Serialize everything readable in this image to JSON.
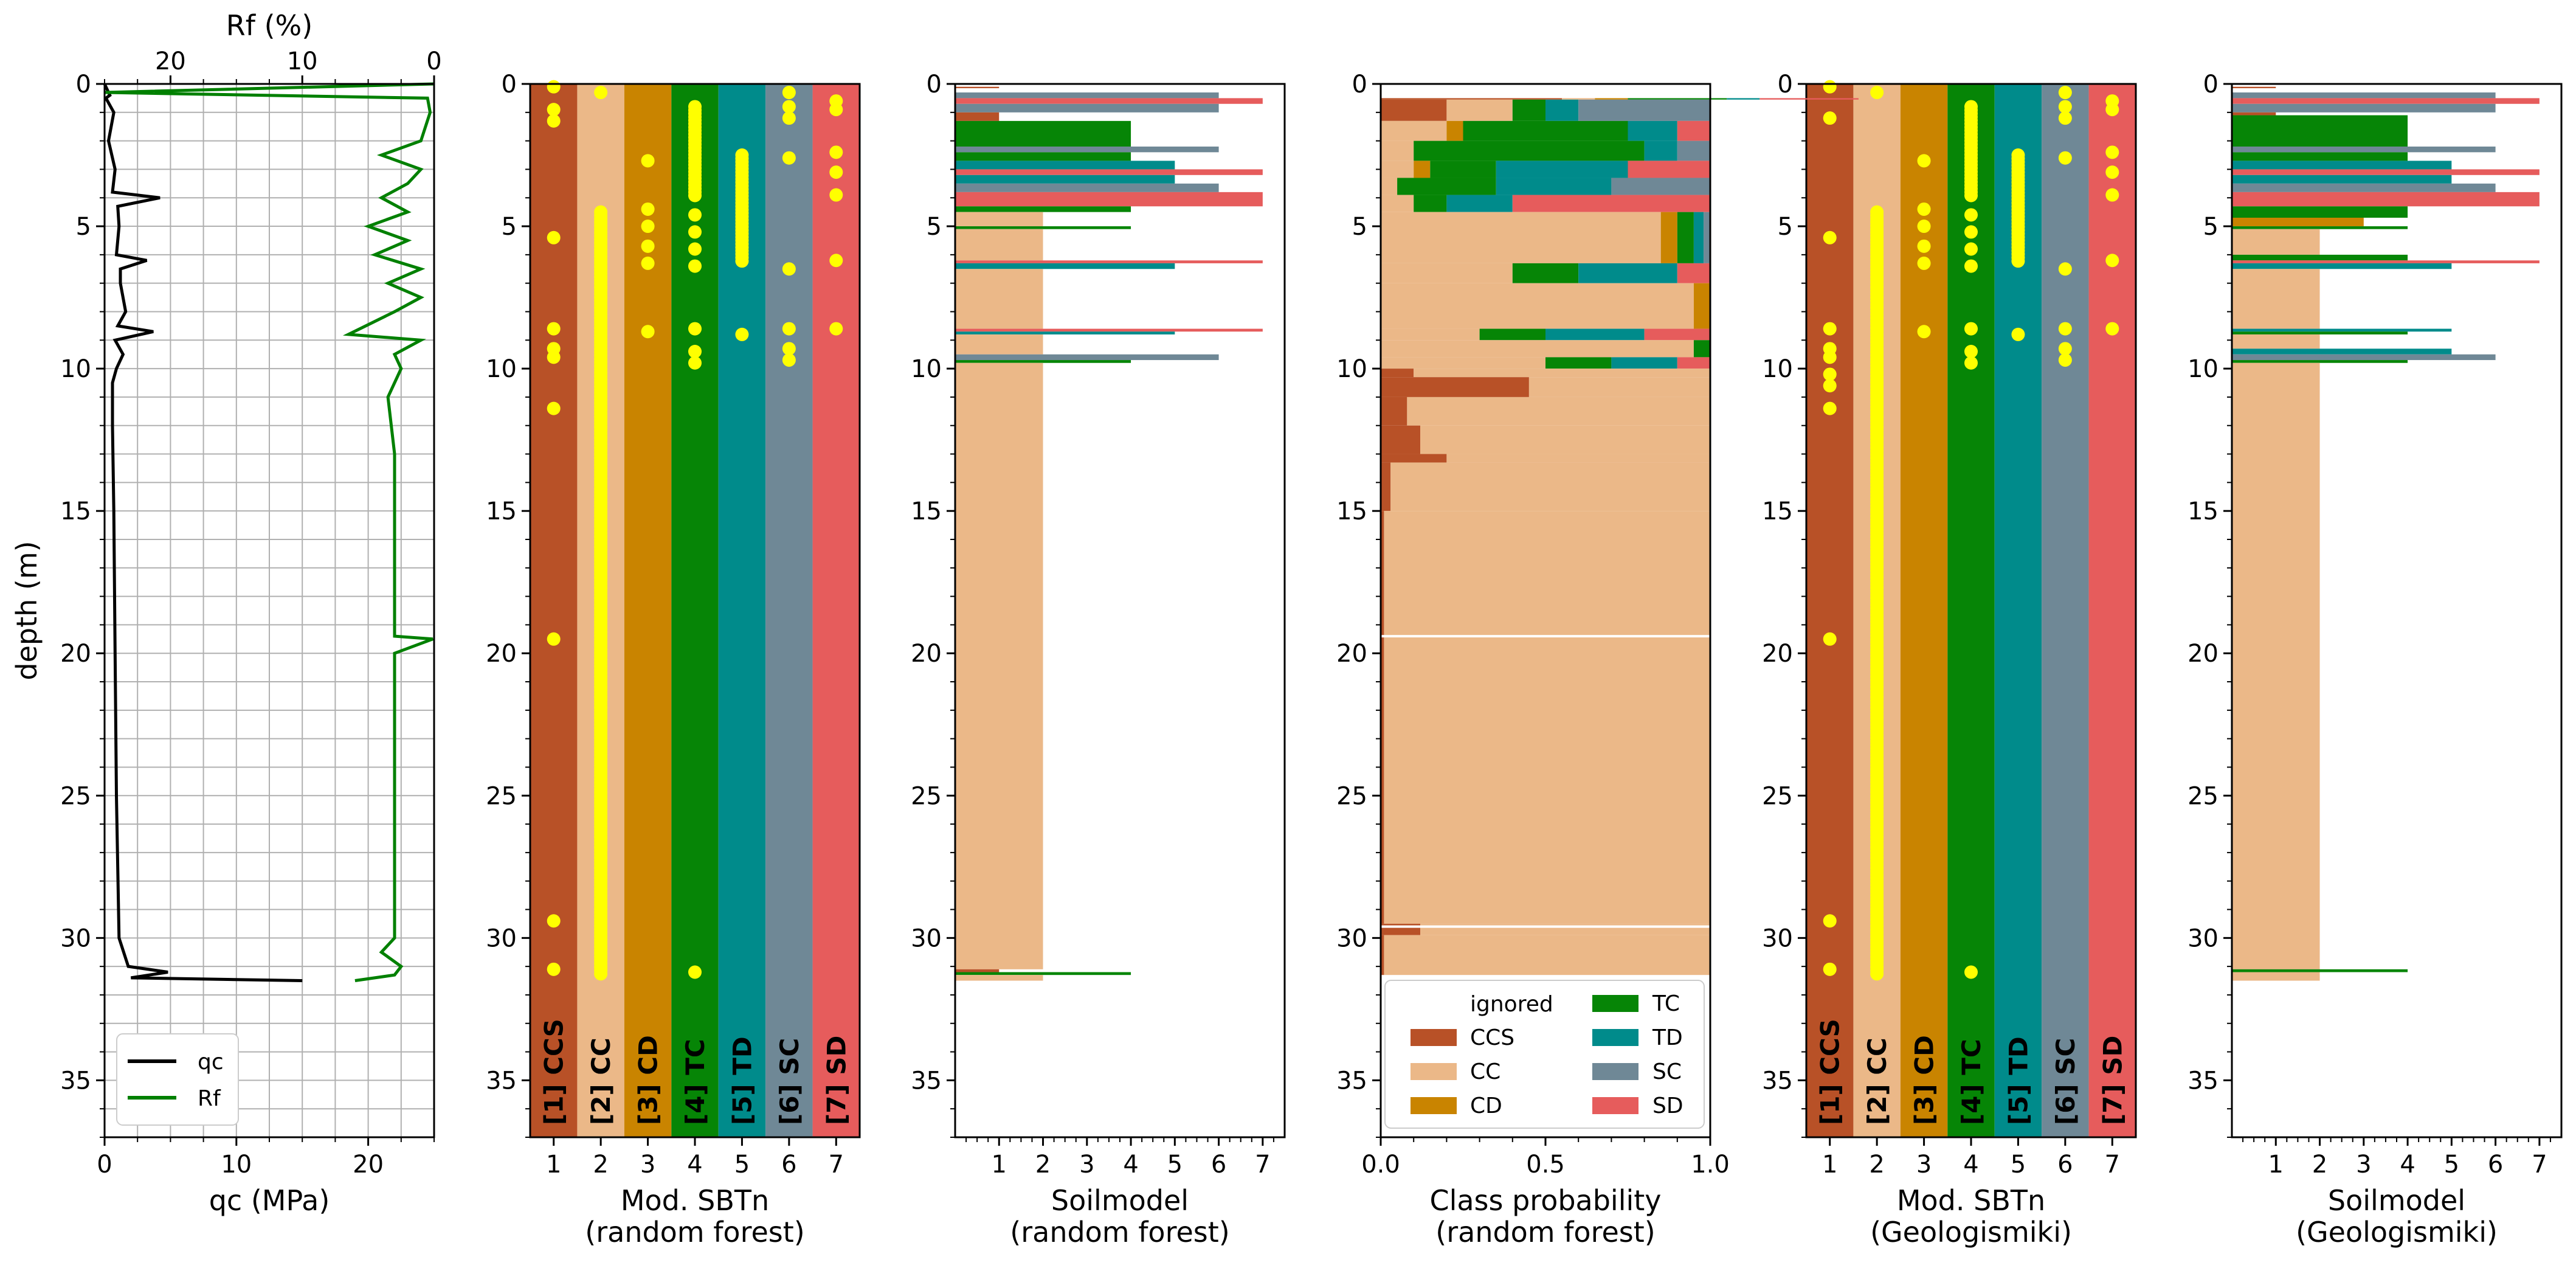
{
  "colors": {
    "CCS": "#b85127",
    "CC": "#ebb888",
    "CD": "#c98400",
    "TC": "#068506",
    "TD": "#008b8b",
    "SC": "#6f8896",
    "SD": "#e65c5c",
    "qc": "#000000",
    "Rf": "#008000",
    "marker": "#ffff00"
  },
  "classes": [
    {
      "id": 1,
      "code": "CCS",
      "label": "[1] CCS"
    },
    {
      "id": 2,
      "code": "CC",
      "label": "[2] CC"
    },
    {
      "id": 3,
      "code": "CD",
      "label": "[3] CD"
    },
    {
      "id": 4,
      "code": "TC",
      "label": "[4] TC"
    },
    {
      "id": 5,
      "code": "TD",
      "label": "[5] TD"
    },
    {
      "id": 6,
      "code": "SC",
      "label": "[6] SC"
    },
    {
      "id": 7,
      "code": "SD",
      "label": "[7] SD"
    }
  ],
  "chart_data": [
    {
      "type": "line",
      "panel": "cpt",
      "ylabel": "depth (m)",
      "ylim": [
        37,
        0
      ],
      "yticks": [
        0,
        5,
        10,
        15,
        20,
        25,
        30,
        35
      ],
      "xlabel": "qc (MPa)",
      "xlim": [
        0,
        25
      ],
      "xticks": [
        0,
        10,
        20
      ],
      "x2label": "Rf (%)",
      "x2lim": [
        25,
        0
      ],
      "x2ticks": [
        20,
        10,
        0
      ],
      "grid": true,
      "legend": {
        "position": "bottom-left",
        "entries": [
          "qc",
          "Rf"
        ]
      },
      "series": [
        {
          "name": "qc",
          "depth": [
            0,
            0.4,
            0.5,
            1,
            2,
            3,
            3.8,
            4,
            4.3,
            5,
            6,
            6.2,
            6.5,
            7,
            8,
            8.5,
            8.7,
            9,
            9.5,
            10,
            10.5,
            11,
            12,
            15,
            20,
            25,
            30,
            31,
            31.2,
            31.4,
            31.5
          ],
          "values": [
            0,
            0.4,
            0.1,
            0.7,
            0.3,
            0.8,
            0.6,
            4.2,
            1.0,
            1.1,
            0.9,
            3.2,
            1.2,
            1.2,
            1.6,
            1.0,
            3.7,
            0.8,
            1.4,
            0.9,
            0.6,
            0.6,
            0.6,
            0.7,
            0.8,
            0.9,
            1.1,
            1.8,
            4.8,
            2.0,
            15.0
          ]
        },
        {
          "name": "Rf",
          "depth": [
            0,
            0.3,
            0.5,
            1,
            2,
            2.5,
            3,
            3.5,
            4,
            4.5,
            5,
            5.5,
            6,
            6.5,
            7,
            7.5,
            8,
            8.8,
            9,
            9.5,
            10,
            11,
            13,
            15,
            17,
            19.4,
            19.5,
            20,
            22,
            25,
            28,
            30,
            30.5,
            31,
            31.3,
            31.5
          ],
          "values": [
            0,
            25,
            0.5,
            0.3,
            1.0,
            4.0,
            1.0,
            2.0,
            4.0,
            2.0,
            5.0,
            2.0,
            4.5,
            1.0,
            3.5,
            1.0,
            3.0,
            6.5,
            1.0,
            3.0,
            2.5,
            3.5,
            3.0,
            3.0,
            3.0,
            3.0,
            0.1,
            3.0,
            3.0,
            3.0,
            3.0,
            3.0,
            4.0,
            2.5,
            3.0,
            6.0
          ]
        }
      ]
    },
    {
      "type": "scatter",
      "panel": "sbtn-rf",
      "xlabel": "Mod. SBTn\n(random forest)",
      "xlim": [
        0.5,
        7.5
      ],
      "xticks": [
        1,
        2,
        3,
        4,
        5,
        6,
        7
      ],
      "ylim": [
        37,
        0
      ],
      "yticks": [
        0,
        5,
        10,
        15,
        20,
        25,
        30,
        35
      ],
      "points": {
        "1": [
          0.1,
          0.9,
          1.3,
          5.4,
          8.6,
          9.3,
          9.6,
          11.4,
          19.5,
          29.4,
          31.1
        ],
        "2": [
          0.3,
          "range:4.5-31.3"
        ],
        "3": [
          2.7,
          4.4,
          5.0,
          5.7,
          6.3,
          8.7
        ],
        "4": [
          "range:0.8-4.0",
          4.6,
          5.2,
          5.8,
          6.4,
          8.6,
          9.4,
          9.8,
          31.2
        ],
        "5": [
          "range:2.5-6.3",
          8.8
        ],
        "6": [
          0.3,
          0.8,
          1.2,
          2.6,
          6.5,
          8.6,
          9.3,
          9.7
        ],
        "7": [
          0.6,
          0.9,
          2.4,
          3.1,
          3.9,
          6.2,
          8.6
        ]
      }
    },
    {
      "type": "bar",
      "panel": "soilmodel-rf",
      "orientation": "horizontal",
      "xlabel": "Soilmodel\n(random forest)",
      "xlim": [
        0,
        7.5
      ],
      "xticks": [
        1,
        2,
        3,
        4,
        5,
        6,
        7
      ],
      "ylim": [
        37,
        0
      ],
      "yticks": [
        0,
        5,
        10,
        15,
        20,
        25,
        30,
        35
      ],
      "layers": [
        [
          0.1,
          0.15,
          1
        ],
        [
          0.3,
          0.5,
          6
        ],
        [
          0.5,
          0.7,
          7
        ],
        [
          0.7,
          1.0,
          6
        ],
        [
          1.0,
          1.3,
          1
        ],
        [
          1.3,
          2.2,
          4
        ],
        [
          2.2,
          2.4,
          6
        ],
        [
          2.4,
          2.7,
          4
        ],
        [
          2.7,
          3.0,
          5
        ],
        [
          3.0,
          3.2,
          7
        ],
        [
          3.2,
          3.5,
          5
        ],
        [
          3.5,
          3.8,
          6
        ],
        [
          3.8,
          4.3,
          7
        ],
        [
          4.3,
          4.5,
          4
        ],
        [
          4.5,
          5.0,
          2
        ],
        [
          5.0,
          5.1,
          4
        ],
        [
          5.1,
          6.2,
          2
        ],
        [
          6.2,
          6.3,
          7
        ],
        [
          6.3,
          6.5,
          5
        ],
        [
          6.5,
          8.6,
          2
        ],
        [
          8.6,
          8.7,
          7
        ],
        [
          8.7,
          8.8,
          5
        ],
        [
          8.8,
          9.5,
          2
        ],
        [
          9.5,
          9.7,
          6
        ],
        [
          9.7,
          9.8,
          4
        ],
        [
          9.8,
          31.1,
          2
        ],
        [
          31.1,
          31.2,
          1
        ],
        [
          31.2,
          31.3,
          4
        ],
        [
          31.3,
          31.5,
          2
        ]
      ]
    },
    {
      "type": "area",
      "panel": "class-probability",
      "xlabel": "Class probability\n(random forest)",
      "xlim": [
        0,
        1
      ],
      "xticks": [
        "0.0",
        "0.5",
        "1.0"
      ],
      "ylim": [
        37,
        0
      ],
      "yticks": [
        0,
        5,
        10,
        15,
        20,
        25,
        30,
        35
      ],
      "legend": {
        "position": "bottom",
        "title": "ignored",
        "entries": [
          "CCS",
          "TC",
          "CC",
          "TD",
          "CD",
          "SC",
          "SD"
        ]
      },
      "rows": [
        [
          0.5,
          0.55,
          0.1,
          0.1,
          0.3,
          0.1,
          0.3
        ],
        [
          0.55,
          0.2,
          0.2,
          0.0,
          0.1,
          0.1,
          0.4
        ],
        [
          1.3,
          0.0,
          0.2,
          0.05,
          0.5,
          0.15,
          0.1
        ],
        [
          2.0,
          0.0,
          0.1,
          0.0,
          0.7,
          0.1,
          0.1
        ],
        [
          2.7,
          0.0,
          0.1,
          0.05,
          0.2,
          0.4,
          0.25
        ],
        [
          3.3,
          0.0,
          0.05,
          0.0,
          0.3,
          0.35,
          0.3
        ],
        [
          3.9,
          0.0,
          0.1,
          0.0,
          0.1,
          0.2,
          0.6
        ],
        [
          4.5,
          0.0,
          0.85,
          0.05,
          0.05,
          0.03,
          0.02
        ],
        [
          6.3,
          0.0,
          0.4,
          0.0,
          0.2,
          0.3,
          0.1
        ],
        [
          7.0,
          0.0,
          0.95,
          0.05,
          0.0,
          0.0,
          0.0
        ],
        [
          8.6,
          0.0,
          0.3,
          0.0,
          0.2,
          0.3,
          0.2
        ],
        [
          9.0,
          0.0,
          0.95,
          0.0,
          0.05,
          0.0,
          0.0
        ],
        [
          9.6,
          0.0,
          0.5,
          0.0,
          0.2,
          0.2,
          0.1
        ],
        [
          10.0,
          0.1,
          0.9,
          0.0,
          0.0,
          0.0,
          0.0
        ],
        [
          10.3,
          0.45,
          0.55,
          0.0,
          0.0,
          0.0,
          0.0
        ],
        [
          11.0,
          0.08,
          0.92,
          0.0,
          0.0,
          0.0,
          0.0
        ],
        [
          12.0,
          0.12,
          0.88,
          0.0,
          0.0,
          0.0,
          0.0
        ],
        [
          13.0,
          0.2,
          0.8,
          0.0,
          0.0,
          0.0,
          0.0
        ],
        [
          13.3,
          0.03,
          0.97,
          0.0,
          0.0,
          0.0,
          0.0
        ],
        [
          15.0,
          0.01,
          0.99,
          0.0,
          0.0,
          0.0,
          0.0
        ],
        [
          29.5,
          0.12,
          0.88,
          0.0,
          0.0,
          0.0,
          0.0
        ],
        [
          29.9,
          0.01,
          0.99,
          0.0,
          0.0,
          0.0,
          0.0
        ],
        [
          31.3,
          0.0,
          0.0,
          0.0,
          0.0,
          0.0,
          0.0
        ]
      ],
      "rows_columns": [
        "depth_top",
        "CCS",
        "CC",
        "CD",
        "TC",
        "TD",
        "SC+SD"
      ]
    },
    {
      "type": "scatter",
      "panel": "sbtn-geo",
      "xlabel": "Mod. SBTn\n(Geologismiki)",
      "xlim": [
        0.5,
        7.5
      ],
      "xticks": [
        1,
        2,
        3,
        4,
        5,
        6,
        7
      ],
      "ylim": [
        37,
        0
      ],
      "yticks": [
        0,
        5,
        10,
        15,
        20,
        25,
        30,
        35
      ],
      "points": {
        "1": [
          0.1,
          1.2,
          5.4,
          8.6,
          9.3,
          9.6,
          10.2,
          10.6,
          11.4,
          19.5,
          29.4,
          31.1
        ],
        "2": [
          0.3,
          "range:4.5-31.3"
        ],
        "3": [
          2.7,
          4.4,
          5.0,
          5.7,
          6.3,
          8.7
        ],
        "4": [
          "range:0.8-4.0",
          4.6,
          5.2,
          5.8,
          6.4,
          8.6,
          9.4,
          9.8,
          31.2
        ],
        "5": [
          "range:2.5-6.3",
          8.8
        ],
        "6": [
          0.3,
          0.8,
          1.2,
          2.6,
          6.5,
          8.6,
          9.3,
          9.7
        ],
        "7": [
          0.6,
          0.9,
          2.4,
          3.1,
          3.9,
          6.2,
          8.6
        ]
      }
    },
    {
      "type": "bar",
      "panel": "soilmodel-geo",
      "orientation": "horizontal",
      "xlabel": "Soilmodel\n(Geologismiki)",
      "xlim": [
        0,
        7.5
      ],
      "xticks": [
        1,
        2,
        3,
        4,
        5,
        6,
        7
      ],
      "ylim": [
        37,
        0
      ],
      "yticks": [
        0,
        5,
        10,
        15,
        20,
        25,
        30,
        35
      ],
      "layers": [
        [
          0.1,
          0.15,
          1
        ],
        [
          0.3,
          0.5,
          6
        ],
        [
          0.5,
          0.7,
          7
        ],
        [
          0.7,
          1.0,
          6
        ],
        [
          1.0,
          1.1,
          1
        ],
        [
          1.1,
          2.2,
          4
        ],
        [
          2.2,
          2.4,
          6
        ],
        [
          2.4,
          2.7,
          4
        ],
        [
          2.7,
          3.0,
          5
        ],
        [
          3.0,
          3.2,
          7
        ],
        [
          3.2,
          3.5,
          5
        ],
        [
          3.5,
          3.8,
          6
        ],
        [
          3.8,
          4.3,
          7
        ],
        [
          4.3,
          4.7,
          4
        ],
        [
          4.7,
          5.0,
          3
        ],
        [
          5.0,
          5.1,
          4
        ],
        [
          5.1,
          6.0,
          2
        ],
        [
          6.0,
          6.2,
          4
        ],
        [
          6.2,
          6.3,
          7
        ],
        [
          6.3,
          6.5,
          5
        ],
        [
          6.5,
          8.6,
          2
        ],
        [
          8.6,
          8.7,
          5
        ],
        [
          8.7,
          8.8,
          4
        ],
        [
          8.8,
          9.3,
          2
        ],
        [
          9.3,
          9.5,
          5
        ],
        [
          9.5,
          9.7,
          6
        ],
        [
          9.7,
          9.8,
          4
        ],
        [
          9.8,
          31.1,
          2
        ],
        [
          31.1,
          31.2,
          4
        ],
        [
          31.2,
          31.5,
          2
        ]
      ]
    }
  ]
}
